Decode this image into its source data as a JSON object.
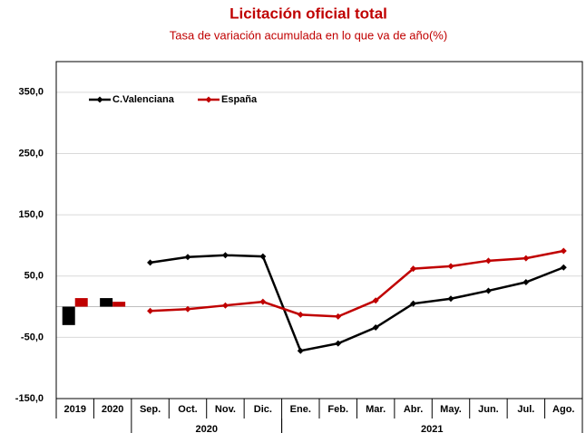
{
  "chart_data": {
    "type": "bar_line",
    "title": "Licitación oficial total",
    "subtitle": "Tasa de variación acumulada en lo que va de año(%)",
    "categories": [
      "2019",
      "2020",
      "Sep.",
      "Oct.",
      "Nov.",
      "Dic.",
      "Ene.",
      "Feb.",
      "Mar.",
      "Abr.",
      "May.",
      "Jun.",
      "Jul.",
      "Ago."
    ],
    "category_groups": [
      null,
      null,
      "2020",
      "2020",
      "2020",
      "2020",
      "2021",
      "2021",
      "2021",
      "2021",
      "2021",
      "2021",
      "2021",
      "2021"
    ],
    "category_marks": [
      "bar",
      "bar",
      "line",
      "line",
      "line",
      "line",
      "line",
      "line",
      "line",
      "line",
      "line",
      "line",
      "line",
      "line"
    ],
    "series": [
      {
        "name": "C.Valenciana",
        "color": "#000000",
        "values": [
          -30,
          14,
          72,
          81,
          84,
          82,
          -72,
          -60,
          -34,
          5,
          13,
          26,
          40,
          64
        ]
      },
      {
        "name": "España",
        "color": "#c00000",
        "values": [
          14,
          8,
          -7,
          -4,
          2,
          8,
          -13,
          -16,
          10,
          62,
          66,
          75,
          79,
          91
        ]
      }
    ],
    "ylim": [
      -150,
      400
    ],
    "yticks": [
      {
        "value": -150,
        "label": "-150,0"
      },
      {
        "value": -50,
        "label": "-50,0"
      },
      {
        "value": 50,
        "label": "50,0"
      },
      {
        "value": 150,
        "label": "150,0"
      },
      {
        "value": 250,
        "label": "250,0"
      },
      {
        "value": 350,
        "label": "350,0"
      }
    ],
    "grid": true,
    "legend": "upper-left"
  }
}
